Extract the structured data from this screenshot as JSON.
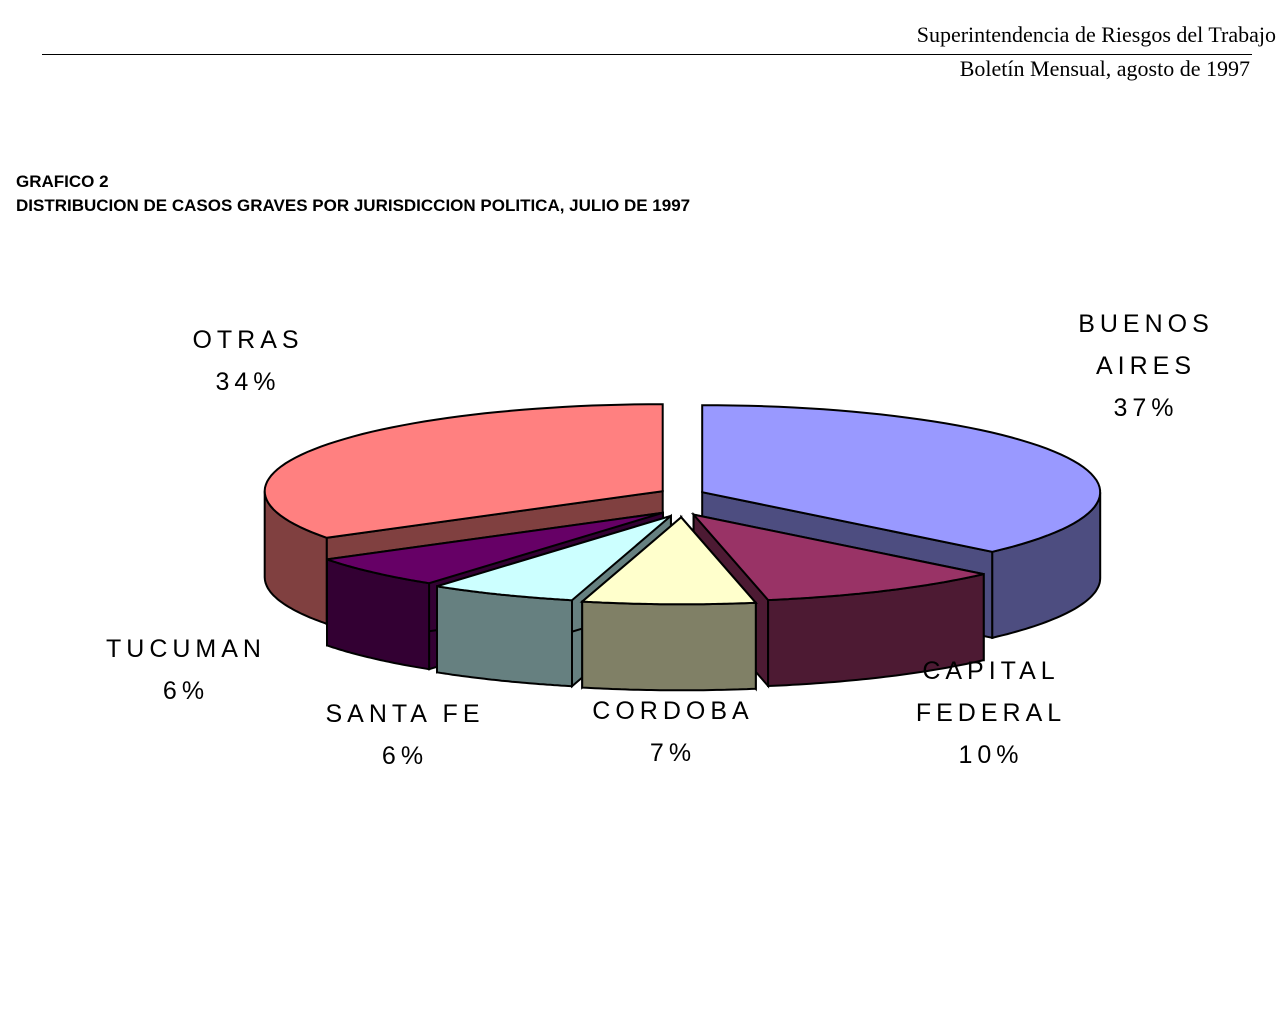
{
  "header": {
    "organization": "Superintendencia de Riesgos del Trabajo",
    "publication": "Boletín Mensual, agosto de 1997"
  },
  "chart_label": "GRAFICO 2",
  "chart_title": "DISTRIBUCION DE CASOS GRAVES POR JURISDICCION POLITICA, JULIO DE 1997",
  "chart_data": {
    "type": "pie",
    "title": "DISTRIBUCION DE CASOS GRAVES POR JURISDICCION POLITICA, JULIO DE 1997",
    "three_d": true,
    "exploded": true,
    "legend": "none",
    "slices": [
      {
        "name_lines": [
          "BUENOS",
          "AIRES"
        ],
        "value": 37,
        "label": "37%",
        "top_color": "#9999ff",
        "side_color": "#4d4d80"
      },
      {
        "name_lines": [
          "CAPITAL",
          "FEDERAL"
        ],
        "value": 10,
        "label": "10%",
        "top_color": "#993366",
        "side_color": "#4d1a33"
      },
      {
        "name_lines": [
          "CORDOBA"
        ],
        "value": 7,
        "label": "7%",
        "top_color": "#ffffcc",
        "side_color": "#808066"
      },
      {
        "name_lines": [
          "SANTA FE"
        ],
        "value": 6,
        "label": "6%",
        "top_color": "#ccffff",
        "side_color": "#668080"
      },
      {
        "name_lines": [
          "TUCUMAN"
        ],
        "value": 6,
        "label": "6%",
        "top_color": "#660066",
        "side_color": "#330033"
      },
      {
        "name_lines": [
          "OTRAS"
        ],
        "value": 34,
        "label": "34%",
        "top_color": "#ff8080",
        "side_color": "#804040"
      }
    ]
  }
}
